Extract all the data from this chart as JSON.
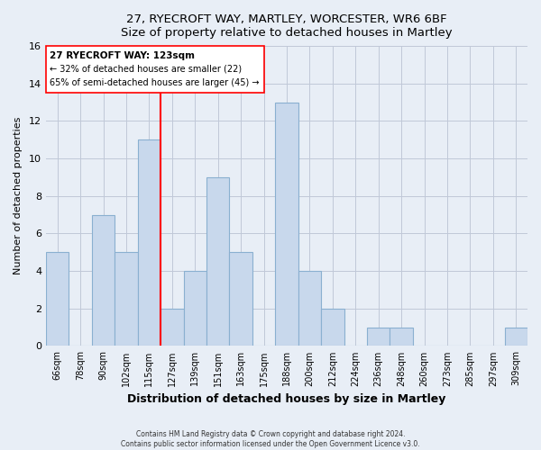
{
  "title": "27, RYECROFT WAY, MARTLEY, WORCESTER, WR6 6BF",
  "subtitle": "Size of property relative to detached houses in Martley",
  "xlabel": "Distribution of detached houses by size in Martley",
  "ylabel": "Number of detached properties",
  "bar_labels": [
    "66sqm",
    "78sqm",
    "90sqm",
    "102sqm",
    "115sqm",
    "127sqm",
    "139sqm",
    "151sqm",
    "163sqm",
    "175sqm",
    "188sqm",
    "200sqm",
    "212sqm",
    "224sqm",
    "236sqm",
    "248sqm",
    "260sqm",
    "273sqm",
    "285sqm",
    "297sqm",
    "309sqm"
  ],
  "bar_values": [
    5,
    0,
    7,
    5,
    11,
    2,
    4,
    9,
    5,
    0,
    13,
    4,
    2,
    0,
    1,
    1,
    0,
    0,
    0,
    0,
    1
  ],
  "bar_color": "#c8d8ec",
  "bar_edge_color": "#8ab0d0",
  "vline_color": "red",
  "annotation_title": "27 RYECROFT WAY: 123sqm",
  "annotation_line1": "← 32% of detached houses are smaller (22)",
  "annotation_line2": "65% of semi-detached houses are larger (45) →",
  "annotation_box_color": "white",
  "annotation_box_edge": "red",
  "ylim": [
    0,
    16
  ],
  "yticks": [
    0,
    2,
    4,
    6,
    8,
    10,
    12,
    14,
    16
  ],
  "footer1": "Contains HM Land Registry data © Crown copyright and database right 2024.",
  "footer2": "Contains public sector information licensed under the Open Government Licence v3.0.",
  "bg_color": "#e8eef6",
  "plot_bg_color": "#e8eef6",
  "grid_color": "#c0c8d8"
}
